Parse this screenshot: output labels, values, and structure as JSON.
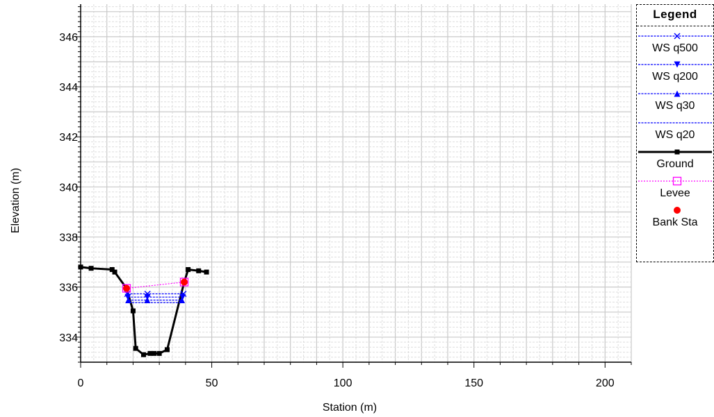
{
  "chart_data": {
    "type": "line",
    "xlabel": "Station (m)",
    "ylabel": "Elevation (m)",
    "xlim": [
      0,
      210
    ],
    "ylim": [
      333,
      347.3
    ],
    "xticks": [
      0,
      50,
      100,
      150,
      200
    ],
    "yticks": [
      334,
      336,
      338,
      340,
      342,
      344,
      346
    ],
    "grid": true,
    "legend_position": "right",
    "legend_title": "Legend",
    "series": [
      {
        "name": "WS q500",
        "color": "#0000ff",
        "style": "dashed",
        "marker": "x",
        "x": [
          17.8,
          39.2
        ],
        "y": [
          335.73,
          335.73
        ]
      },
      {
        "name": "WS q200",
        "color": "#0000ff",
        "style": "dashed",
        "marker": "triangle-down",
        "x": [
          18.0,
          38.9
        ],
        "y": [
          335.6,
          335.6
        ]
      },
      {
        "name": "WS q30",
        "color": "#0000ff",
        "style": "dashed",
        "marker": "triangle-up",
        "x": [
          18.2,
          38.6
        ],
        "y": [
          335.48,
          335.48
        ]
      },
      {
        "name": "WS q20",
        "color": "#0000ff",
        "style": "dashed",
        "marker": "none",
        "x": [
          18.4,
          38.4
        ],
        "y": [
          335.38,
          335.38
        ]
      },
      {
        "name": "Ground",
        "color": "#000000",
        "style": "solid",
        "marker": "square",
        "x": [
          0,
          4,
          12,
          13,
          17.5,
          20,
          21,
          24,
          26.5,
          28,
          30,
          33,
          39.5,
          41,
          45,
          48
        ],
        "y": [
          336.8,
          336.75,
          336.7,
          336.6,
          335.95,
          335.05,
          333.55,
          333.3,
          333.35,
          333.35,
          333.35,
          333.5,
          336.2,
          336.7,
          336.65,
          336.6
        ]
      },
      {
        "name": "Levee",
        "color": "#ff00ff",
        "style": "dotted",
        "marker": "open-square",
        "x": [
          17.5,
          39.5
        ],
        "y": [
          335.95,
          336.2
        ]
      },
      {
        "name": "Bank Sta",
        "color": "#ff0000",
        "style": "none",
        "marker": "circle",
        "x": [
          17.5,
          39.5
        ],
        "y": [
          335.95,
          336.2
        ]
      }
    ]
  }
}
